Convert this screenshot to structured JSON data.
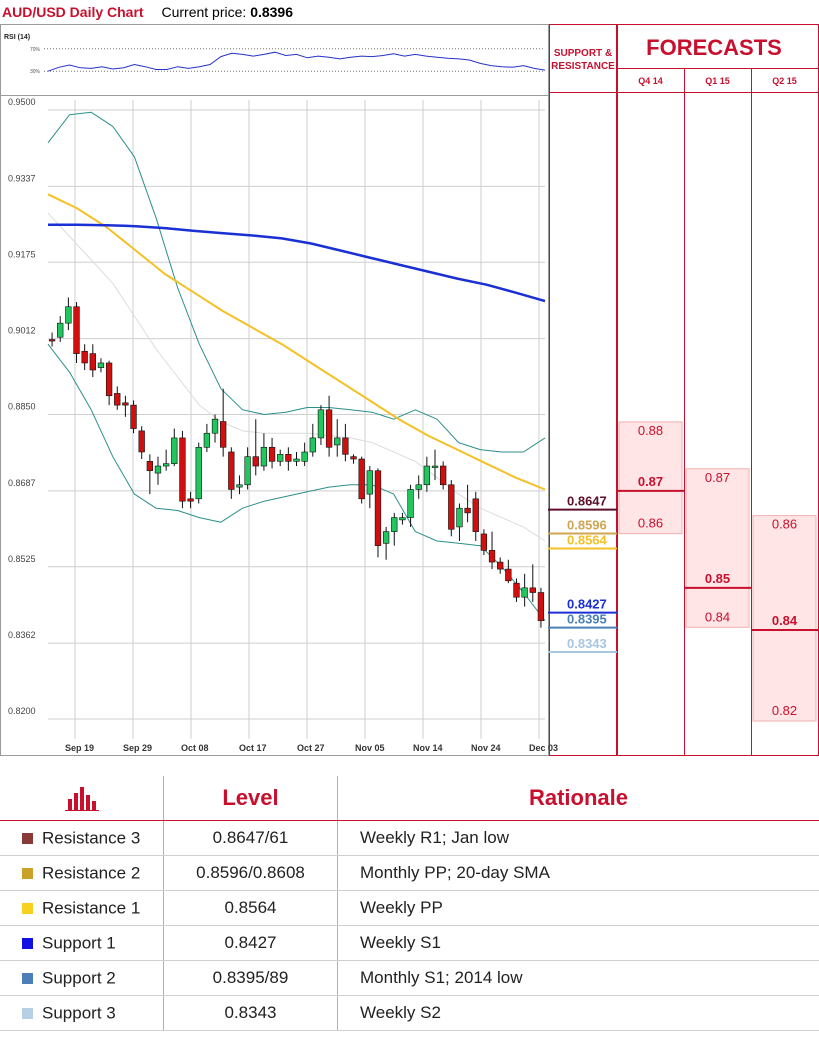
{
  "header": {
    "title": "AUD/USD Daily Chart",
    "price_label": "Current price:",
    "price": "0.8396"
  },
  "colors": {
    "accent": "#c8102e",
    "candle_up": "#22c55e",
    "candle_down": "#d10f0f",
    "sma_slow": "#1a2fd4",
    "sma_mid": "#f5c023",
    "band": "#2b8f8a"
  },
  "chart_data": {
    "type": "candlestick",
    "title": "AUD/USD Daily Chart",
    "y_ticks": [
      "0.9500",
      "0.9337",
      "0.9175",
      "0.9012",
      "0.8850",
      "0.8687",
      "0.8525",
      "0.8362",
      "0.8200"
    ],
    "ylim": [
      0.82,
      0.95
    ],
    "x_tick_labels": [
      "Sep 19",
      "Sep 29",
      "Oct 08",
      "Oct 17",
      "Oct 27",
      "Nov 05",
      "Nov 14",
      "Nov 24",
      "Dec 03"
    ],
    "candles": [
      {
        "o": 0.901,
        "h": 0.9025,
        "l": 0.8995,
        "c": 0.9008
      },
      {
        "o": 0.9015,
        "h": 0.906,
        "l": 0.9005,
        "c": 0.9045
      },
      {
        "o": 0.9045,
        "h": 0.91,
        "l": 0.903,
        "c": 0.908
      },
      {
        "o": 0.908,
        "h": 0.909,
        "l": 0.896,
        "c": 0.898
      },
      {
        "o": 0.8985,
        "h": 0.9,
        "l": 0.8945,
        "c": 0.896
      },
      {
        "o": 0.898,
        "h": 0.9,
        "l": 0.893,
        "c": 0.8945
      },
      {
        "o": 0.895,
        "h": 0.897,
        "l": 0.894,
        "c": 0.896
      },
      {
        "o": 0.896,
        "h": 0.8965,
        "l": 0.887,
        "c": 0.889
      },
      {
        "o": 0.8895,
        "h": 0.891,
        "l": 0.886,
        "c": 0.887
      },
      {
        "o": 0.8875,
        "h": 0.889,
        "l": 0.8845,
        "c": 0.887
      },
      {
        "o": 0.887,
        "h": 0.888,
        "l": 0.881,
        "c": 0.882
      },
      {
        "o": 0.8815,
        "h": 0.8825,
        "l": 0.8755,
        "c": 0.877
      },
      {
        "o": 0.875,
        "h": 0.8765,
        "l": 0.868,
        "c": 0.873
      },
      {
        "o": 0.8725,
        "h": 0.876,
        "l": 0.87,
        "c": 0.874
      },
      {
        "o": 0.874,
        "h": 0.8775,
        "l": 0.873,
        "c": 0.8745
      },
      {
        "o": 0.8745,
        "h": 0.882,
        "l": 0.874,
        "c": 0.88
      },
      {
        "o": 0.88,
        "h": 0.8815,
        "l": 0.865,
        "c": 0.8665
      },
      {
        "o": 0.867,
        "h": 0.8685,
        "l": 0.865,
        "c": 0.8665
      },
      {
        "o": 0.867,
        "h": 0.879,
        "l": 0.866,
        "c": 0.878
      },
      {
        "o": 0.878,
        "h": 0.883,
        "l": 0.877,
        "c": 0.881
      },
      {
        "o": 0.881,
        "h": 0.885,
        "l": 0.879,
        "c": 0.884
      },
      {
        "o": 0.8835,
        "h": 0.8905,
        "l": 0.876,
        "c": 0.878
      },
      {
        "o": 0.877,
        "h": 0.878,
        "l": 0.867,
        "c": 0.869
      },
      {
        "o": 0.8695,
        "h": 0.872,
        "l": 0.868,
        "c": 0.87
      },
      {
        "o": 0.87,
        "h": 0.878,
        "l": 0.869,
        "c": 0.876
      },
      {
        "o": 0.876,
        "h": 0.884,
        "l": 0.872,
        "c": 0.874
      },
      {
        "o": 0.874,
        "h": 0.881,
        "l": 0.873,
        "c": 0.878
      },
      {
        "o": 0.878,
        "h": 0.88,
        "l": 0.8735,
        "c": 0.875
      },
      {
        "o": 0.875,
        "h": 0.8775,
        "l": 0.874,
        "c": 0.8765
      },
      {
        "o": 0.8765,
        "h": 0.878,
        "l": 0.873,
        "c": 0.875
      },
      {
        "o": 0.875,
        "h": 0.877,
        "l": 0.874,
        "c": 0.8755
      },
      {
        "o": 0.875,
        "h": 0.879,
        "l": 0.874,
        "c": 0.877
      },
      {
        "o": 0.877,
        "h": 0.883,
        "l": 0.876,
        "c": 0.88
      },
      {
        "o": 0.88,
        "h": 0.887,
        "l": 0.8785,
        "c": 0.886
      },
      {
        "o": 0.886,
        "h": 0.889,
        "l": 0.876,
        "c": 0.878
      },
      {
        "o": 0.8785,
        "h": 0.884,
        "l": 0.876,
        "c": 0.88
      },
      {
        "o": 0.88,
        "h": 0.883,
        "l": 0.875,
        "c": 0.8765
      },
      {
        "o": 0.876,
        "h": 0.8765,
        "l": 0.8745,
        "c": 0.8755
      },
      {
        "o": 0.8755,
        "h": 0.876,
        "l": 0.866,
        "c": 0.867
      },
      {
        "o": 0.868,
        "h": 0.874,
        "l": 0.865,
        "c": 0.873
      },
      {
        "o": 0.873,
        "h": 0.8735,
        "l": 0.8545,
        "c": 0.857
      },
      {
        "o": 0.8575,
        "h": 0.861,
        "l": 0.854,
        "c": 0.86
      },
      {
        "o": 0.86,
        "h": 0.864,
        "l": 0.857,
        "c": 0.863
      },
      {
        "o": 0.8625,
        "h": 0.864,
        "l": 0.8615,
        "c": 0.863
      },
      {
        "o": 0.863,
        "h": 0.87,
        "l": 0.861,
        "c": 0.869
      },
      {
        "o": 0.869,
        "h": 0.872,
        "l": 0.867,
        "c": 0.87
      },
      {
        "o": 0.87,
        "h": 0.876,
        "l": 0.8685,
        "c": 0.874
      },
      {
        "o": 0.874,
        "h": 0.8775,
        "l": 0.871,
        "c": 0.874
      },
      {
        "o": 0.874,
        "h": 0.875,
        "l": 0.869,
        "c": 0.87
      },
      {
        "o": 0.87,
        "h": 0.871,
        "l": 0.859,
        "c": 0.8605
      },
      {
        "o": 0.861,
        "h": 0.866,
        "l": 0.858,
        "c": 0.865
      },
      {
        "o": 0.865,
        "h": 0.87,
        "l": 0.862,
        "c": 0.864
      },
      {
        "o": 0.867,
        "h": 0.8685,
        "l": 0.858,
        "c": 0.86
      },
      {
        "o": 0.8595,
        "h": 0.8605,
        "l": 0.855,
        "c": 0.856
      },
      {
        "o": 0.856,
        "h": 0.86,
        "l": 0.852,
        "c": 0.8535
      },
      {
        "o": 0.8535,
        "h": 0.8545,
        "l": 0.851,
        "c": 0.852
      },
      {
        "o": 0.852,
        "h": 0.854,
        "l": 0.849,
        "c": 0.8495
      },
      {
        "o": 0.849,
        "h": 0.85,
        "l": 0.845,
        "c": 0.846
      },
      {
        "o": 0.846,
        "h": 0.851,
        "l": 0.844,
        "c": 0.848
      },
      {
        "o": 0.848,
        "h": 0.853,
        "l": 0.845,
        "c": 0.847
      },
      {
        "o": 0.847,
        "h": 0.848,
        "l": 0.8395,
        "c": 0.841
      }
    ],
    "sma_slow": [
      0.9255,
      0.9255,
      0.9254,
      0.9252,
      0.9248,
      0.9242,
      0.9237,
      0.9232,
      0.9226,
      0.9215,
      0.92,
      0.9185,
      0.917,
      0.9155,
      0.914,
      0.9127,
      0.911,
      0.9092
    ],
    "sma_mid": [
      0.932,
      0.929,
      0.925,
      0.92,
      0.915,
      0.911,
      0.907,
      0.9035,
      0.9,
      0.896,
      0.892,
      0.888,
      0.884,
      0.8805,
      0.8775,
      0.8745,
      0.8715,
      0.869
    ],
    "bb_upper": [
      0.943,
      0.949,
      0.9495,
      0.9465,
      0.94,
      0.927,
      0.912,
      0.9,
      0.8905,
      0.886,
      0.885,
      0.8855,
      0.8865,
      0.8865,
      0.886,
      0.8855,
      0.884,
      0.886,
      0.884,
      0.879,
      0.8775,
      0.877,
      0.877,
      0.88
    ],
    "bb_mid": [
      0.928,
      0.923,
      0.918,
      0.913,
      0.906,
      0.899,
      0.893,
      0.887,
      0.8835,
      0.8815,
      0.881,
      0.881,
      0.881,
      0.8805,
      0.88,
      0.879,
      0.877,
      0.875,
      0.8715,
      0.868,
      0.865,
      0.863,
      0.861,
      0.858
    ],
    "bb_lower": [
      0.9,
      0.894,
      0.886,
      0.876,
      0.868,
      0.865,
      0.8645,
      0.863,
      0.862,
      0.865,
      0.8665,
      0.8675,
      0.8685,
      0.8695,
      0.87,
      0.87,
      0.868,
      0.86,
      0.858,
      0.8575,
      0.857,
      0.8525,
      0.847,
      0.841
    ],
    "rsi": [
      30,
      37,
      41,
      36,
      35,
      38,
      34,
      36,
      42,
      38,
      33,
      33,
      38,
      35,
      38,
      42,
      56,
      62,
      60,
      57,
      60,
      64,
      58,
      60,
      54,
      57,
      55,
      52,
      55,
      57,
      56,
      58,
      61,
      57,
      60,
      57,
      55,
      53,
      52,
      50,
      44,
      40,
      38,
      37,
      40,
      35,
      32
    ],
    "rsi_label": "RSI (14)",
    "rsi_levels": [
      "70%",
      "30%"
    ],
    "levels_panel": {
      "title": "SUPPORT &\nRESISTANCE",
      "levels": [
        {
          "value": "0.8647",
          "num": 0.8647,
          "color": "#5b0f2a"
        },
        {
          "value": "0.8596",
          "num": 0.8596,
          "color": "#cfa453"
        },
        {
          "value": "0.8564",
          "num": 0.8564,
          "color": "#f5c023"
        },
        {
          "value": "0.8427",
          "num": 0.8427,
          "color": "#1a2fd4"
        },
        {
          "value": "0.8395",
          "num": 0.8395,
          "color": "#4a7fb7"
        },
        {
          "value": "0.8343",
          "num": 0.8343,
          "color": "#a8c6e0"
        }
      ]
    },
    "forecasts": {
      "title": "FORECASTS",
      "columns": [
        {
          "label": "Q4 14",
          "high": "0.88",
          "mid": "0.87",
          "low": "0.86",
          "high_num": 0.88,
          "mid_num": 0.8687,
          "low_num": 0.86
        },
        {
          "label": "Q1 15",
          "high": "0.87",
          "mid": "0.85",
          "low": "0.84",
          "high_num": 0.87,
          "mid_num": 0.848,
          "low_num": 0.84
        },
        {
          "label": "Q2 15",
          "high": "0.86",
          "mid": "0.84",
          "low": "0.82",
          "high_num": 0.86,
          "mid_num": 0.839,
          "low_num": 0.82
        }
      ]
    }
  },
  "table": {
    "icon": "bar-chart-icon",
    "headers": {
      "level": "Level",
      "rationale": "Rationale"
    },
    "rows": [
      {
        "label": "Resistance 3",
        "color": "#8b3a3a",
        "level": "0.8647/61",
        "rationale": "Weekly R1; Jan low"
      },
      {
        "label": "Resistance 2",
        "color": "#c9a227",
        "level": "0.8596/0.8608",
        "rationale": "Monthly PP; 20-day SMA"
      },
      {
        "label": "Resistance 1",
        "color": "#f7d11e",
        "level": "0.8564",
        "rationale": "Weekly PP"
      },
      {
        "label": "Support 1",
        "color": "#1010e0",
        "level": "0.8427",
        "rationale": "Weekly S1"
      },
      {
        "label": "Support 2",
        "color": "#4a7fb7",
        "level": "0.8395/89",
        "rationale": "Monthly S1; 2014 low"
      },
      {
        "label": "Support 3",
        "color": "#b8d0e6",
        "level": "0.8343",
        "rationale": "Weekly S2"
      }
    ]
  }
}
